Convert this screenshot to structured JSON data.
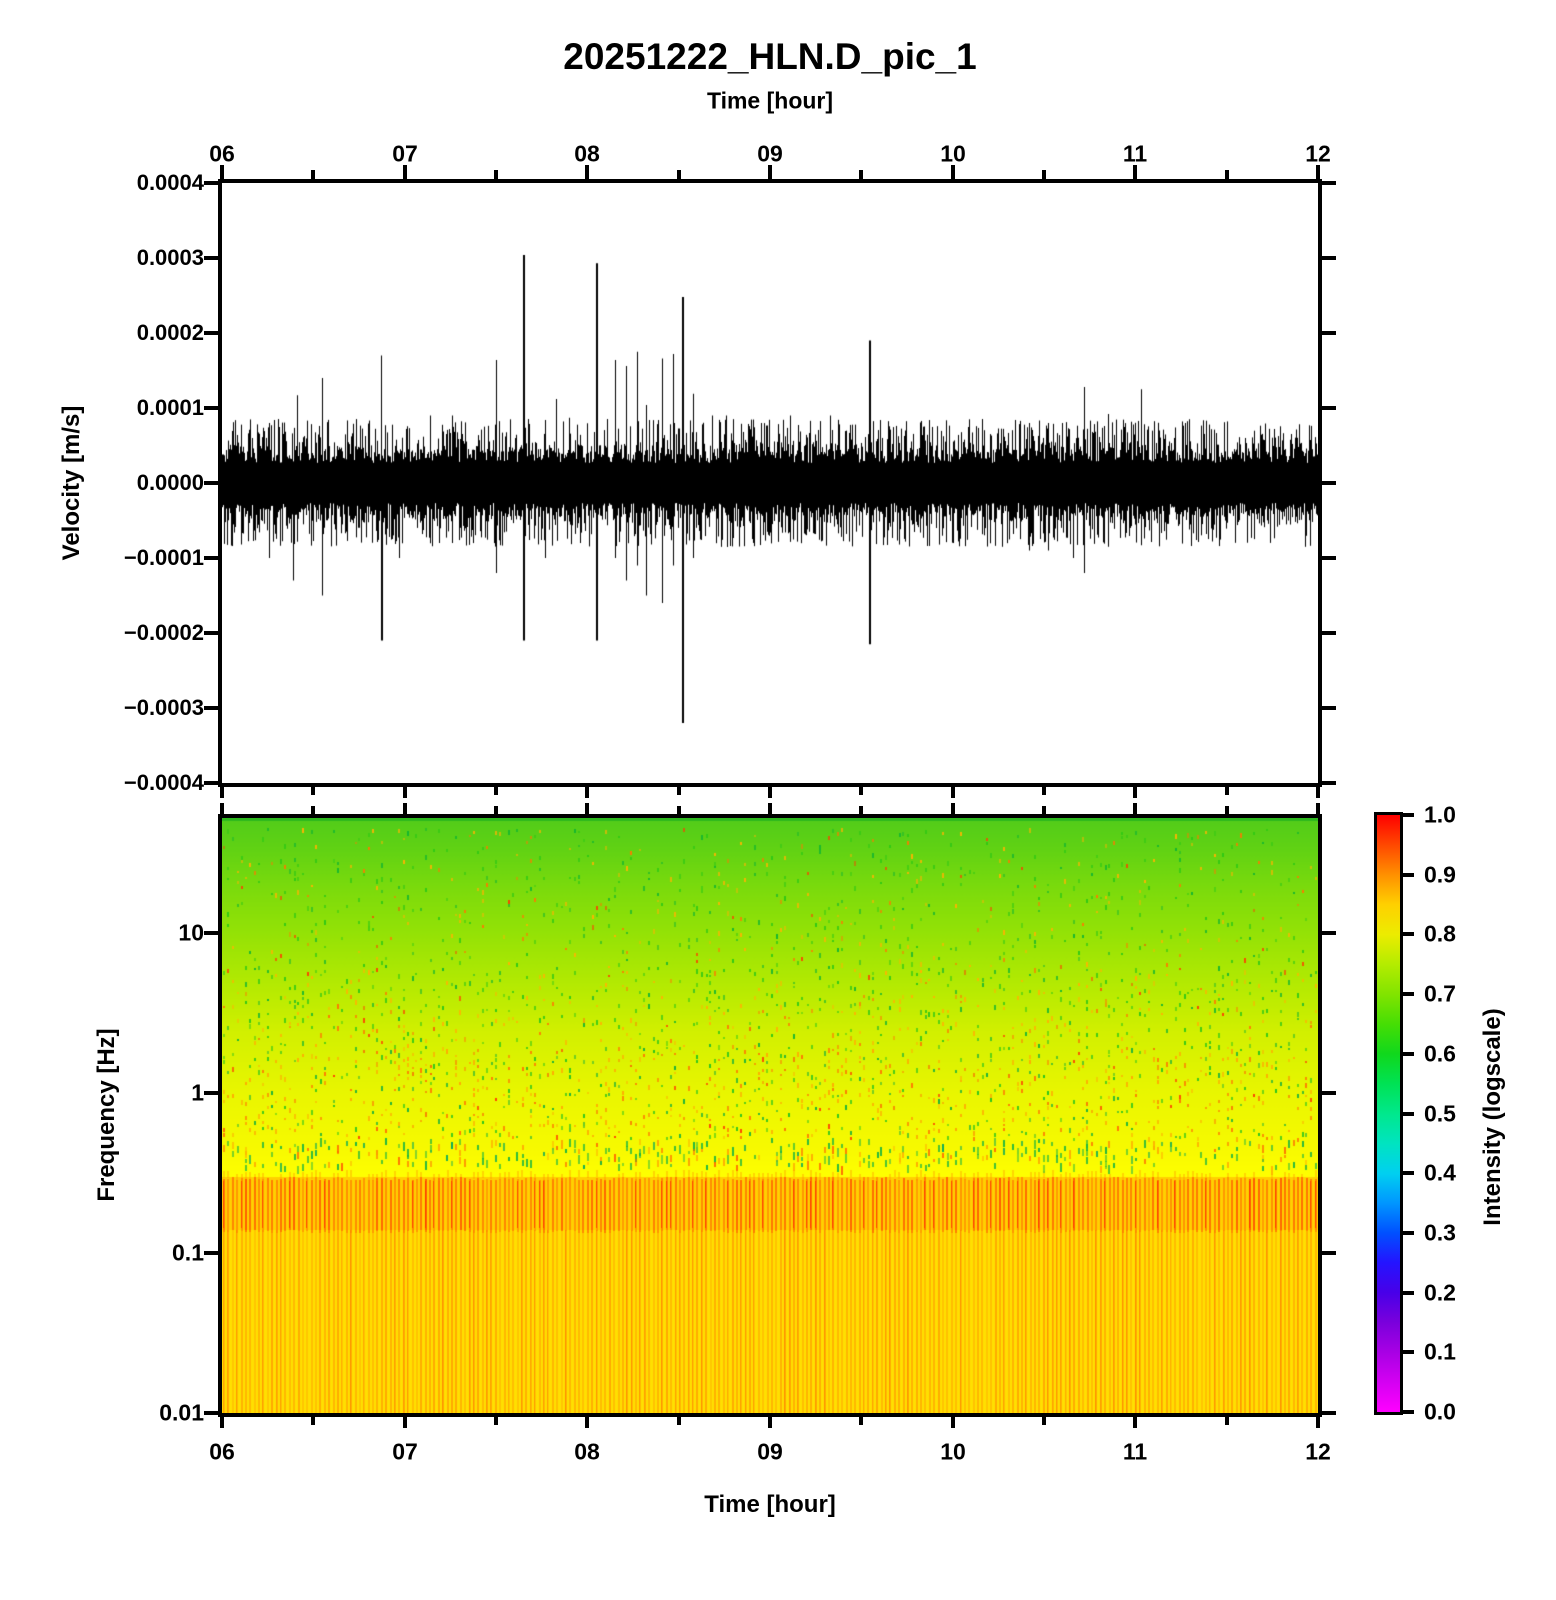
{
  "figure": {
    "title": "20251222_HLN.D_pic_1",
    "top_axis_label": "Time [hour]",
    "bottom_axis_label": "Time [hour]",
    "hour_tick_labels": [
      "06",
      "07",
      "08",
      "09",
      "10",
      "11",
      "12"
    ],
    "waveform": {
      "ylabel": "Velocity [m/s]",
      "ytick_labels": [
        "0.0004",
        "0.0003",
        "0.0002",
        "0.0001",
        "0.0000",
        "−0.0001",
        "−0.0002",
        "−0.0003",
        "−0.0004"
      ]
    },
    "spectrogram": {
      "ylabel": "Frequency [Hz]",
      "ytick_labels": [
        "10",
        "1",
        "0.1",
        "0.01"
      ]
    },
    "colorbar": {
      "label": "Intensity (logscale)",
      "tick_labels": [
        "1.0",
        "0.9",
        "0.8",
        "0.7",
        "0.6",
        "0.5",
        "0.4",
        "0.3",
        "0.2",
        "0.1",
        "0.0"
      ],
      "gradient_stops": [
        [
          0.0,
          "#ff00ff"
        ],
        [
          0.05,
          "#d400f2"
        ],
        [
          0.1,
          "#a800e4"
        ],
        [
          0.15,
          "#7a00dc"
        ],
        [
          0.2,
          "#4800e8"
        ],
        [
          0.25,
          "#2414ff"
        ],
        [
          0.3,
          "#0050ff"
        ],
        [
          0.35,
          "#0096ff"
        ],
        [
          0.4,
          "#00d0f0"
        ],
        [
          0.45,
          "#00e4c0"
        ],
        [
          0.5,
          "#00e88c"
        ],
        [
          0.55,
          "#00e254"
        ],
        [
          0.6,
          "#10d81c"
        ],
        [
          0.65,
          "#46de04"
        ],
        [
          0.7,
          "#82e400"
        ],
        [
          0.75,
          "#b4ec00"
        ],
        [
          0.8,
          "#ecec00"
        ],
        [
          0.85,
          "#ffd000"
        ],
        [
          0.9,
          "#ff9000"
        ],
        [
          0.95,
          "#ff4800"
        ],
        [
          1.0,
          "#ff0000"
        ]
      ]
    }
  },
  "chart_data": [
    {
      "type": "line",
      "title": "20251222_HLN.D_pic_1",
      "xlabel": "Time [hour]",
      "ylabel": "Velocity [m/s]",
      "xlim": [
        6,
        12
      ],
      "ylim": [
        -0.0004,
        0.0004
      ],
      "xticks": [
        6,
        7,
        8,
        9,
        10,
        11,
        12
      ],
      "yticks": [
        0.0004,
        0.0003,
        0.0002,
        0.0001,
        0.0,
        -0.0001,
        -0.0002,
        -0.0003,
        -0.0004
      ],
      "line_color": "#000000",
      "noise_band_amplitude": 4e-05,
      "spikes_positive": [
        [
          6.26,
          8e-05
        ],
        [
          6.41,
          0.000117
        ],
        [
          6.55,
          0.00014
        ],
        [
          6.87,
          0.00017
        ],
        [
          7.14,
          9e-05
        ],
        [
          7.26,
          9e-05
        ],
        [
          7.5,
          0.000164
        ],
        [
          7.65,
          0.000304
        ],
        [
          7.83,
          0.000112
        ],
        [
          7.9,
          8.7e-05
        ],
        [
          8.05,
          0.000293
        ],
        [
          8.15,
          0.000164
        ],
        [
          8.21,
          0.000156
        ],
        [
          8.27,
          0.000175
        ],
        [
          8.32,
          0.000104
        ],
        [
          8.41,
          0.000166
        ],
        [
          8.47,
          0.000172
        ],
        [
          8.52,
          0.000248
        ],
        [
          8.58,
          0.000119
        ],
        [
          8.68,
          9e-05
        ],
        [
          8.76,
          9e-05
        ],
        [
          8.95,
          8e-05
        ],
        [
          9.11,
          9e-05
        ],
        [
          9.33,
          9e-05
        ],
        [
          9.54,
          0.00019
        ],
        [
          9.6,
          8e-05
        ],
        [
          9.74,
          7e-05
        ],
        [
          10.16,
          7e-05
        ],
        [
          10.42,
          8e-05
        ],
        [
          10.52,
          8e-05
        ],
        [
          10.6,
          8e-05
        ],
        [
          10.72,
          0.000128
        ],
        [
          10.85,
          9.2e-05
        ],
        [
          11.03,
          0.000125
        ],
        [
          11.13,
          7e-05
        ],
        [
          11.27,
          8e-05
        ]
      ],
      "spikes_negative": [
        [
          6.26,
          -0.0001
        ],
        [
          6.39,
          -0.00013
        ],
        [
          6.55,
          -0.00015
        ],
        [
          6.87,
          -0.00021
        ],
        [
          6.97,
          -0.0001
        ],
        [
          7.19,
          -8e-05
        ],
        [
          7.26,
          -8e-05
        ],
        [
          7.5,
          -0.00012
        ],
        [
          7.65,
          -0.00021
        ],
        [
          7.77,
          -0.0001
        ],
        [
          8.05,
          -0.00021
        ],
        [
          8.15,
          -0.0001
        ],
        [
          8.21,
          -0.00013
        ],
        [
          8.27,
          -0.00011
        ],
        [
          8.32,
          -0.00015
        ],
        [
          8.41,
          -0.00016
        ],
        [
          8.47,
          -0.00011
        ],
        [
          8.52,
          -0.00032
        ],
        [
          8.58,
          -0.0001
        ],
        [
          9.54,
          -0.000215
        ],
        [
          10.42,
          -9e-05
        ],
        [
          10.52,
          -9e-05
        ],
        [
          10.66,
          -0.0001
        ],
        [
          10.72,
          -0.00012
        ],
        [
          10.85,
          -8.5e-05
        ],
        [
          11.03,
          -8.3e-05
        ]
      ]
    },
    {
      "type": "heatmap",
      "xlabel": "Time [hour]",
      "ylabel": "Frequency [Hz]",
      "xlim": [
        6,
        12
      ],
      "ylim_hz": [
        0.01,
        52
      ],
      "yscale": "log",
      "yticks_hz": [
        10,
        1,
        0.1,
        0.01
      ],
      "colorbar_label": "Intensity (logscale)",
      "colorbar_range": [
        0.0,
        1.0
      ],
      "column_period_hours": 0.024,
      "bg_gradient": [
        [
          0.0,
          "#52cc1a"
        ],
        [
          0.05,
          "#60d214"
        ],
        [
          0.12,
          "#7cdb0c"
        ],
        [
          0.193,
          "#94e206"
        ],
        [
          0.28,
          "#b4ea02"
        ],
        [
          0.36,
          "#d2f000"
        ],
        [
          0.462,
          "#e9f600"
        ],
        [
          0.56,
          "#f8fa00"
        ],
        [
          0.603,
          "#ffff00"
        ],
        [
          1.0,
          "#ffff00"
        ]
      ],
      "bands": [
        {
          "name": "high-frequency-green",
          "freq_range": [
            8,
            52
          ],
          "mean_intensity": 0.68
        },
        {
          "name": "speckled-yellow",
          "freq_range": [
            0.35,
            8
          ],
          "mean_intensity": 0.78
        },
        {
          "name": "microseism-orange-stripes",
          "freq_range": [
            0.14,
            0.3
          ],
          "mean_intensity": 0.86
        },
        {
          "name": "low-frequency-gold-stripes",
          "freq_range": [
            0.01,
            0.14
          ],
          "mean_intensity": 0.82
        }
      ]
    }
  ]
}
